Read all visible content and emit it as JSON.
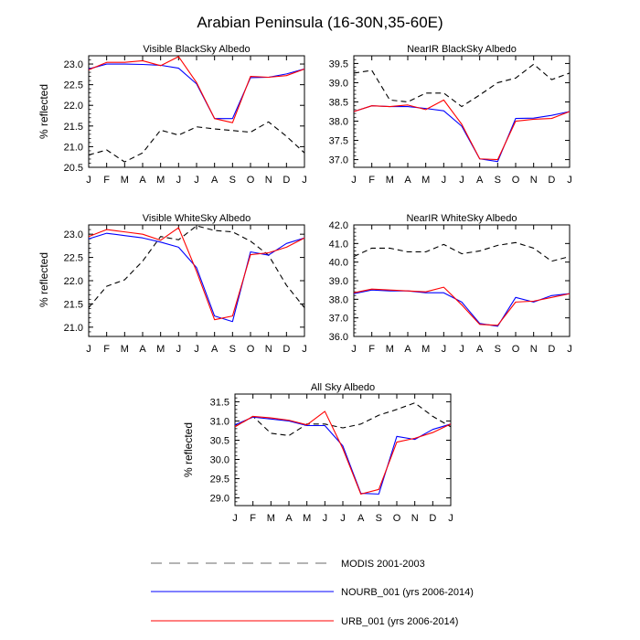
{
  "figure": {
    "title": "Arabian Peninsula (16-30N,35-60E)"
  },
  "chart_data": [
    {
      "type": "line",
      "title": "Visible BlackSky Albedo",
      "ylabel": "% reflected",
      "categories": [
        "J",
        "F",
        "M",
        "A",
        "M",
        "J",
        "J",
        "A",
        "S",
        "O",
        "N",
        "D",
        "J"
      ],
      "ylim": [
        20.5,
        23.2
      ],
      "yticks": [
        20.5,
        21.0,
        21.5,
        22.0,
        22.5,
        23.0
      ],
      "grid": false,
      "series": [
        {
          "name": "MODIS 2001-2003",
          "values": [
            20.8,
            20.92,
            20.63,
            20.85,
            21.4,
            21.28,
            21.48,
            21.43,
            21.39,
            21.35,
            21.6,
            21.25,
            20.85
          ]
        },
        {
          "name": "NOURB_001 (yrs 2006-2014)",
          "values": [
            22.88,
            23.0,
            23.0,
            22.99,
            22.97,
            22.9,
            22.52,
            21.68,
            21.68,
            22.67,
            22.68,
            22.76,
            22.88
          ]
        },
        {
          "name": "URB_001 (yrs 2006-2014)",
          "values": [
            22.86,
            23.04,
            23.04,
            23.08,
            22.96,
            23.18,
            22.55,
            21.68,
            21.58,
            22.7,
            22.68,
            22.72,
            22.88
          ]
        }
      ]
    },
    {
      "type": "line",
      "title": "NearIR BlackSky Albedo",
      "ylabel": "",
      "categories": [
        "J",
        "F",
        "M",
        "A",
        "M",
        "J",
        "J",
        "A",
        "S",
        "O",
        "N",
        "D",
        "J"
      ],
      "ylim": [
        36.8,
        39.7
      ],
      "yticks": [
        37.0,
        37.5,
        38.0,
        38.5,
        39.0,
        39.5
      ],
      "grid": false,
      "series": [
        {
          "name": "MODIS 2001-2003",
          "values": [
            39.25,
            39.32,
            38.55,
            38.5,
            38.73,
            38.73,
            38.38,
            38.68,
            39.0,
            39.12,
            39.48,
            39.08,
            39.25
          ]
        },
        {
          "name": "NOURB_001 (yrs 2006-2014)",
          "values": [
            38.25,
            38.4,
            38.38,
            38.38,
            38.33,
            38.27,
            37.87,
            37.02,
            36.95,
            38.07,
            38.08,
            38.15,
            38.25
          ]
        },
        {
          "name": "URB_001 (yrs 2006-2014)",
          "values": [
            38.25,
            38.4,
            38.38,
            38.42,
            38.3,
            38.55,
            37.92,
            37.02,
            37.0,
            38.0,
            38.05,
            38.07,
            38.25
          ]
        }
      ]
    },
    {
      "type": "line",
      "title": "Visible WhiteSky Albedo",
      "ylabel": "% reflected",
      "categories": [
        "J",
        "F",
        "M",
        "A",
        "M",
        "J",
        "J",
        "A",
        "S",
        "O",
        "N",
        "D",
        "J"
      ],
      "ylim": [
        20.8,
        23.2
      ],
      "yticks": [
        21.0,
        21.5,
        22.0,
        22.5,
        23.0
      ],
      "grid": false,
      "series": [
        {
          "name": "MODIS 2001-2003",
          "values": [
            21.42,
            21.88,
            22.02,
            22.42,
            22.95,
            22.88,
            23.18,
            23.08,
            23.05,
            22.85,
            22.55,
            21.9,
            21.42
          ]
        },
        {
          "name": "NOURB_001 (yrs 2006-2014)",
          "values": [
            22.9,
            23.02,
            22.97,
            22.92,
            22.83,
            22.72,
            22.28,
            21.24,
            21.12,
            22.62,
            22.55,
            22.8,
            22.92
          ]
        },
        {
          "name": "URB_001 (yrs 2006-2014)",
          "values": [
            22.95,
            23.1,
            23.05,
            23.0,
            22.87,
            23.14,
            22.2,
            21.16,
            21.24,
            22.56,
            22.6,
            22.72,
            22.92
          ]
        }
      ]
    },
    {
      "type": "line",
      "title": "NearIR WhiteSky Albedo",
      "ylabel": "",
      "categories": [
        "J",
        "F",
        "M",
        "A",
        "M",
        "J",
        "J",
        "A",
        "S",
        "O",
        "N",
        "D",
        "J"
      ],
      "ylim": [
        36.0,
        42.0
      ],
      "yticks": [
        36.0,
        37.0,
        38.0,
        39.0,
        40.0,
        41.0,
        42.0
      ],
      "grid": false,
      "series": [
        {
          "name": "MODIS 2001-2003",
          "values": [
            40.3,
            40.75,
            40.75,
            40.55,
            40.55,
            40.95,
            40.45,
            40.6,
            40.9,
            41.05,
            40.75,
            40.05,
            40.3
          ]
        },
        {
          "name": "NOURB_001 (yrs 2006-2014)",
          "values": [
            38.3,
            38.5,
            38.45,
            38.45,
            38.35,
            38.35,
            37.85,
            36.7,
            36.55,
            38.1,
            37.85,
            38.2,
            38.3
          ]
        },
        {
          "name": "URB_001 (yrs 2006-2014)",
          "values": [
            38.35,
            38.55,
            38.5,
            38.45,
            38.4,
            38.65,
            37.7,
            36.65,
            36.6,
            37.85,
            37.9,
            38.1,
            38.3
          ]
        }
      ]
    },
    {
      "type": "line",
      "title": "All Sky Albedo",
      "ylabel": "% reflected",
      "categories": [
        "J",
        "F",
        "M",
        "A",
        "M",
        "J",
        "J",
        "A",
        "S",
        "O",
        "N",
        "D",
        "J"
      ],
      "ylim": [
        28.8,
        31.7
      ],
      "yticks": [
        29.0,
        29.5,
        30.0,
        30.5,
        31.0,
        31.5
      ],
      "grid": false,
      "series": [
        {
          "name": "MODIS 2001-2003",
          "values": [
            30.85,
            31.12,
            30.68,
            30.62,
            30.92,
            30.92,
            30.82,
            30.92,
            31.15,
            31.3,
            31.47,
            31.12,
            30.85
          ]
        },
        {
          "name": "NOURB_001 (yrs 2006-2014)",
          "values": [
            30.9,
            31.1,
            31.05,
            31.0,
            30.88,
            30.88,
            30.35,
            29.12,
            29.1,
            30.6,
            30.52,
            30.78,
            30.92
          ]
        },
        {
          "name": "URB_001 (yrs 2006-2014)",
          "values": [
            30.85,
            31.12,
            31.08,
            31.02,
            30.9,
            31.25,
            30.28,
            29.1,
            29.22,
            30.45,
            30.55,
            30.7,
            30.92
          ]
        }
      ]
    }
  ],
  "legend": {
    "placement": "bottom-center",
    "entries": [
      {
        "label": "MODIS 2001-2003",
        "color": "#000000",
        "style": "dashed"
      },
      {
        "label": "NOURB_001 (yrs 2006-2014)",
        "color": "#0000ff",
        "style": "solid"
      },
      {
        "label": "URB_001 (yrs 2006-2014)",
        "color": "#ff0000",
        "style": "solid"
      }
    ]
  },
  "colors": {
    "modis": "#000000",
    "nourb": "#0000ff",
    "urb": "#ff0000"
  }
}
